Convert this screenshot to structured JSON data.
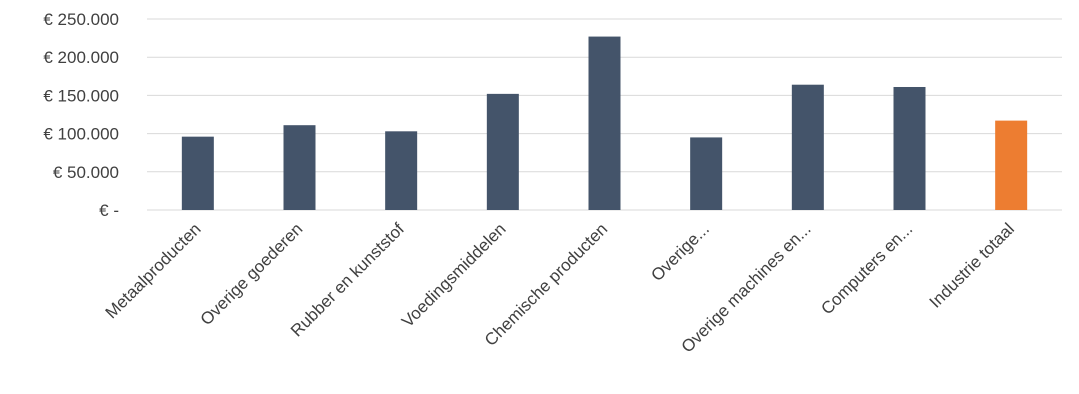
{
  "chart_data": {
    "type": "bar",
    "title": "",
    "xlabel": "",
    "ylabel": "",
    "ylim": [
      0,
      250000
    ],
    "yticks": [
      0,
      50000,
      100000,
      150000,
      200000,
      250000
    ],
    "ytick_labels": [
      "€ -",
      "€ 50.000",
      "€ 100.000",
      "€ 150.000",
      "€ 200.000",
      "€ 250.000"
    ],
    "categories": [
      "Metaalproducten",
      "Overige goederen",
      "Rubber en kunststof",
      "Voedingsmiddelen",
      "Chemische producten",
      "Overige...",
      "Overige machines en...",
      "Computers en...",
      "Industrie totaal"
    ],
    "values": [
      96000,
      111000,
      103000,
      152000,
      227000,
      95000,
      164000,
      161000,
      117000
    ],
    "bar_colors": [
      "#44546a",
      "#44546a",
      "#44546a",
      "#44546a",
      "#44546a",
      "#44546a",
      "#44546a",
      "#44546a",
      "#ed7d31"
    ],
    "grid": true,
    "legend": "none"
  }
}
